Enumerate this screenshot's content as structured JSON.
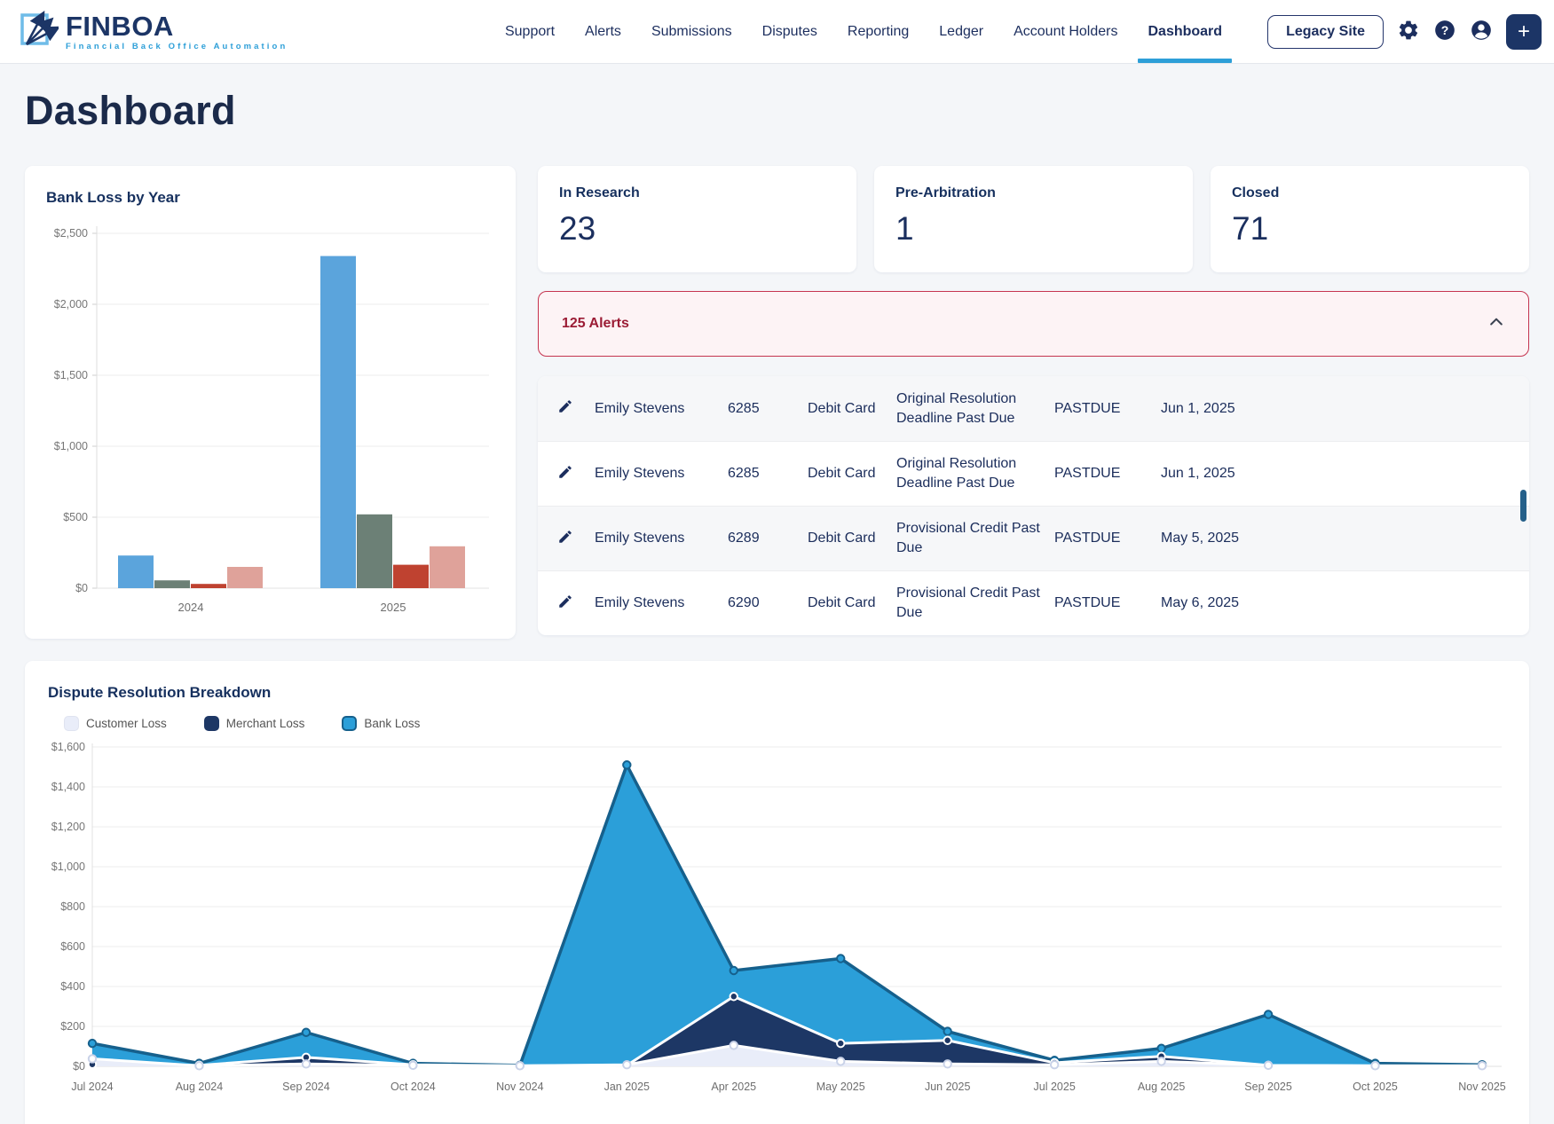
{
  "header": {
    "logo_name": "FINBOA",
    "logo_tagline": "Financial Back Office Automation",
    "nav": [
      {
        "label": "Support",
        "active": false
      },
      {
        "label": "Alerts",
        "active": false
      },
      {
        "label": "Submissions",
        "active": false
      },
      {
        "label": "Disputes",
        "active": false
      },
      {
        "label": "Reporting",
        "active": false
      },
      {
        "label": "Ledger",
        "active": false
      },
      {
        "label": "Account Holders",
        "active": false
      },
      {
        "label": "Dashboard",
        "active": true
      }
    ],
    "legacy_site_label": "Legacy Site",
    "add_button_label": "+"
  },
  "page_title": "Dashboard",
  "colors": {
    "accent_blue": "#2D9FD8",
    "navy": "#1C2E5E",
    "alert_border": "#C5344F",
    "alert_text": "#9B1C35"
  },
  "stat_cards": [
    {
      "label": "In Research",
      "value": "23"
    },
    {
      "label": "Pre-Arbitration",
      "value": "1"
    },
    {
      "label": "Closed",
      "value": "71"
    }
  ],
  "alerts_banner": {
    "label": "125 Alerts"
  },
  "alerts_table": {
    "rows": [
      {
        "name": "Emily Stevens",
        "case_number": "6285",
        "card_type": "Debit Card",
        "reason": "Original Resolution Deadline Past Due",
        "status": "PASTDUE",
        "date": "Jun 1, 2025"
      },
      {
        "name": "Emily Stevens",
        "case_number": "6285",
        "card_type": "Debit Card",
        "reason": "Original Resolution Deadline Past Due",
        "status": "PASTDUE",
        "date": "Jun 1, 2025"
      },
      {
        "name": "Emily Stevens",
        "case_number": "6289",
        "card_type": "Debit Card",
        "reason": "Provisional Credit Past Due",
        "status": "PASTDUE",
        "date": "May 5, 2025"
      },
      {
        "name": "Emily Stevens",
        "case_number": "6290",
        "card_type": "Debit Card",
        "reason": "Provisional Credit Past Due",
        "status": "PASTDUE",
        "date": "May 6, 2025"
      }
    ]
  },
  "chart_data": [
    {
      "type": "bar",
      "title": "Bank Loss by Year",
      "categories": [
        "2024",
        "2025"
      ],
      "series": [
        {
          "name": "bar-blue",
          "color": "#5BA4DC",
          "values": [
            230,
            2340
          ]
        },
        {
          "name": "bar-sage",
          "color": "#6C8076",
          "values": [
            55,
            520
          ]
        },
        {
          "name": "bar-red",
          "color": "#BF4230",
          "values": [
            30,
            165
          ]
        },
        {
          "name": "bar-salmon",
          "color": "#DFA29A",
          "values": [
            150,
            295
          ]
        }
      ],
      "ylim": [
        0,
        2500
      ],
      "ytick_step": 500,
      "grid": true,
      "legend": "none"
    },
    {
      "type": "area",
      "title": "Dispute Resolution Breakdown",
      "categories": [
        "Jul 2024",
        "Aug 2024",
        "Sep 2024",
        "Oct 2024",
        "Nov 2024",
        "Jan 2025",
        "Apr 2025",
        "May 2025",
        "Jun 2025",
        "Jul 2025",
        "Aug 2025",
        "Sep 2025",
        "Oct 2025",
        "Nov 2025"
      ],
      "series": [
        {
          "name": "Customer Loss",
          "fill": "#E9EDF9",
          "line": "#FFFFFF",
          "marker_fill": "#FFFFFF",
          "marker_stroke": "#C9D2E8",
          "values": [
            38,
            3,
            12,
            5,
            3,
            8,
            105,
            25,
            12,
            8,
            25,
            5,
            3,
            3
          ]
        },
        {
          "name": "Merchant Loss",
          "fill": "#1D3765",
          "line": "#FFFFFF",
          "marker_fill": "#1D3765",
          "marker_stroke": "#FFFFFF",
          "values": [
            10,
            5,
            45,
            8,
            3,
            5,
            350,
            115,
            130,
            18,
            50,
            5,
            3,
            3
          ]
        },
        {
          "name": "Bank Loss",
          "fill": "#2B9FD9",
          "line": "#16608C",
          "marker_fill": "#2B9FD9",
          "marker_stroke": "#16608C",
          "values": [
            115,
            15,
            170,
            15,
            5,
            1510,
            480,
            540,
            175,
            30,
            90,
            260,
            15,
            8
          ]
        }
      ],
      "draw_order": [
        2,
        1,
        0
      ],
      "ylim": [
        0,
        1600
      ],
      "ytick_step": 200,
      "grid": true,
      "legend": "top-left"
    }
  ]
}
